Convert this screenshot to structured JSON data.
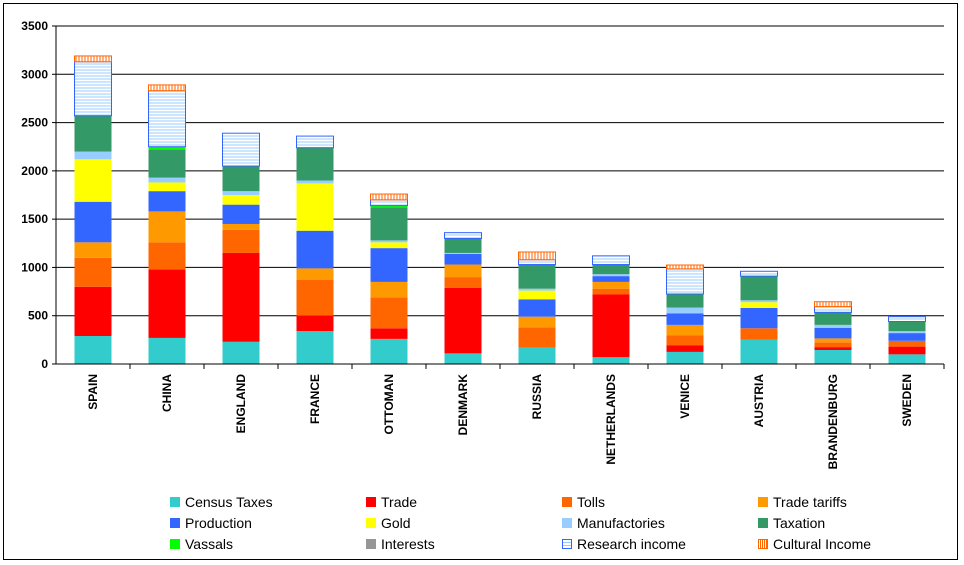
{
  "chart_data": {
    "type": "bar",
    "stacked": true,
    "title": "",
    "xlabel": "",
    "ylabel": "",
    "ylim": [
      0,
      3500
    ],
    "yticks": [
      0,
      500,
      1000,
      1500,
      2000,
      2500,
      3000,
      3500
    ],
    "grid": true,
    "legend_position": "bottom",
    "categories": [
      "SPAIN",
      "CHINA",
      "ENGLAND",
      "FRANCE",
      "OTTOMAN",
      "DENMARK",
      "RUSSIA",
      "NETHERLANDS",
      "VENICE",
      "AUSTRIA",
      "BRANDENBURG",
      "SWEDEN"
    ],
    "series": [
      {
        "name": "Census Taxes",
        "color": "#33cccc",
        "pattern": "solid",
        "values": [
          290,
          270,
          230,
          340,
          260,
          110,
          170,
          70,
          125,
          250,
          145,
          100
        ]
      },
      {
        "name": "Trade",
        "color": "#ff0000",
        "pattern": "solid",
        "values": [
          510,
          710,
          920,
          160,
          110,
          680,
          0,
          650,
          70,
          0,
          30,
          80
        ]
      },
      {
        "name": "Tolls",
        "color": "#ff6600",
        "pattern": "solid",
        "values": [
          300,
          280,
          240,
          370,
          320,
          110,
          210,
          60,
          100,
          120,
          50,
          60
        ]
      },
      {
        "name": "Trade tariffs",
        "color": "#ff9900",
        "pattern": "solid",
        "values": [
          160,
          320,
          60,
          120,
          160,
          130,
          110,
          70,
          110,
          0,
          40,
          0
        ]
      },
      {
        "name": "Production",
        "color": "#3366ff",
        "pattern": "solid",
        "values": [
          420,
          210,
          200,
          390,
          350,
          110,
          180,
          60,
          120,
          210,
          110,
          80
        ]
      },
      {
        "name": "Gold",
        "color": "#ffff00",
        "pattern": "solid",
        "values": [
          440,
          90,
          100,
          490,
          60,
          0,
          90,
          0,
          0,
          60,
          0,
          0
        ]
      },
      {
        "name": "Manufactories",
        "color": "#99ccff",
        "pattern": "solid",
        "values": [
          80,
          50,
          40,
          30,
          20,
          10,
          20,
          20,
          60,
          20,
          30,
          20
        ]
      },
      {
        "name": "Taxation",
        "color": "#339966",
        "pattern": "solid",
        "values": [
          370,
          290,
          260,
          340,
          340,
          150,
          250,
          100,
          140,
          250,
          130,
          100
        ]
      },
      {
        "name": "Vassals",
        "color": "#00ff00",
        "pattern": "solid",
        "values": [
          0,
          30,
          0,
          0,
          20,
          0,
          0,
          0,
          0,
          0,
          0,
          0
        ]
      },
      {
        "name": "Interests",
        "color": "#969696",
        "pattern": "solid",
        "values": [
          0,
          0,
          0,
          0,
          0,
          0,
          0,
          0,
          0,
          0,
          0,
          0
        ]
      },
      {
        "name": "Research income",
        "color": "#3366ff",
        "pattern": "hlines",
        "values": [
          560,
          580,
          340,
          120,
          60,
          60,
          50,
          90,
          260,
          50,
          60,
          50
        ]
      },
      {
        "name": "Cultural Income",
        "color": "#ff6600",
        "pattern": "vlines",
        "values": [
          60,
          60,
          0,
          0,
          60,
          0,
          80,
          0,
          40,
          0,
          50,
          0
        ]
      }
    ]
  }
}
